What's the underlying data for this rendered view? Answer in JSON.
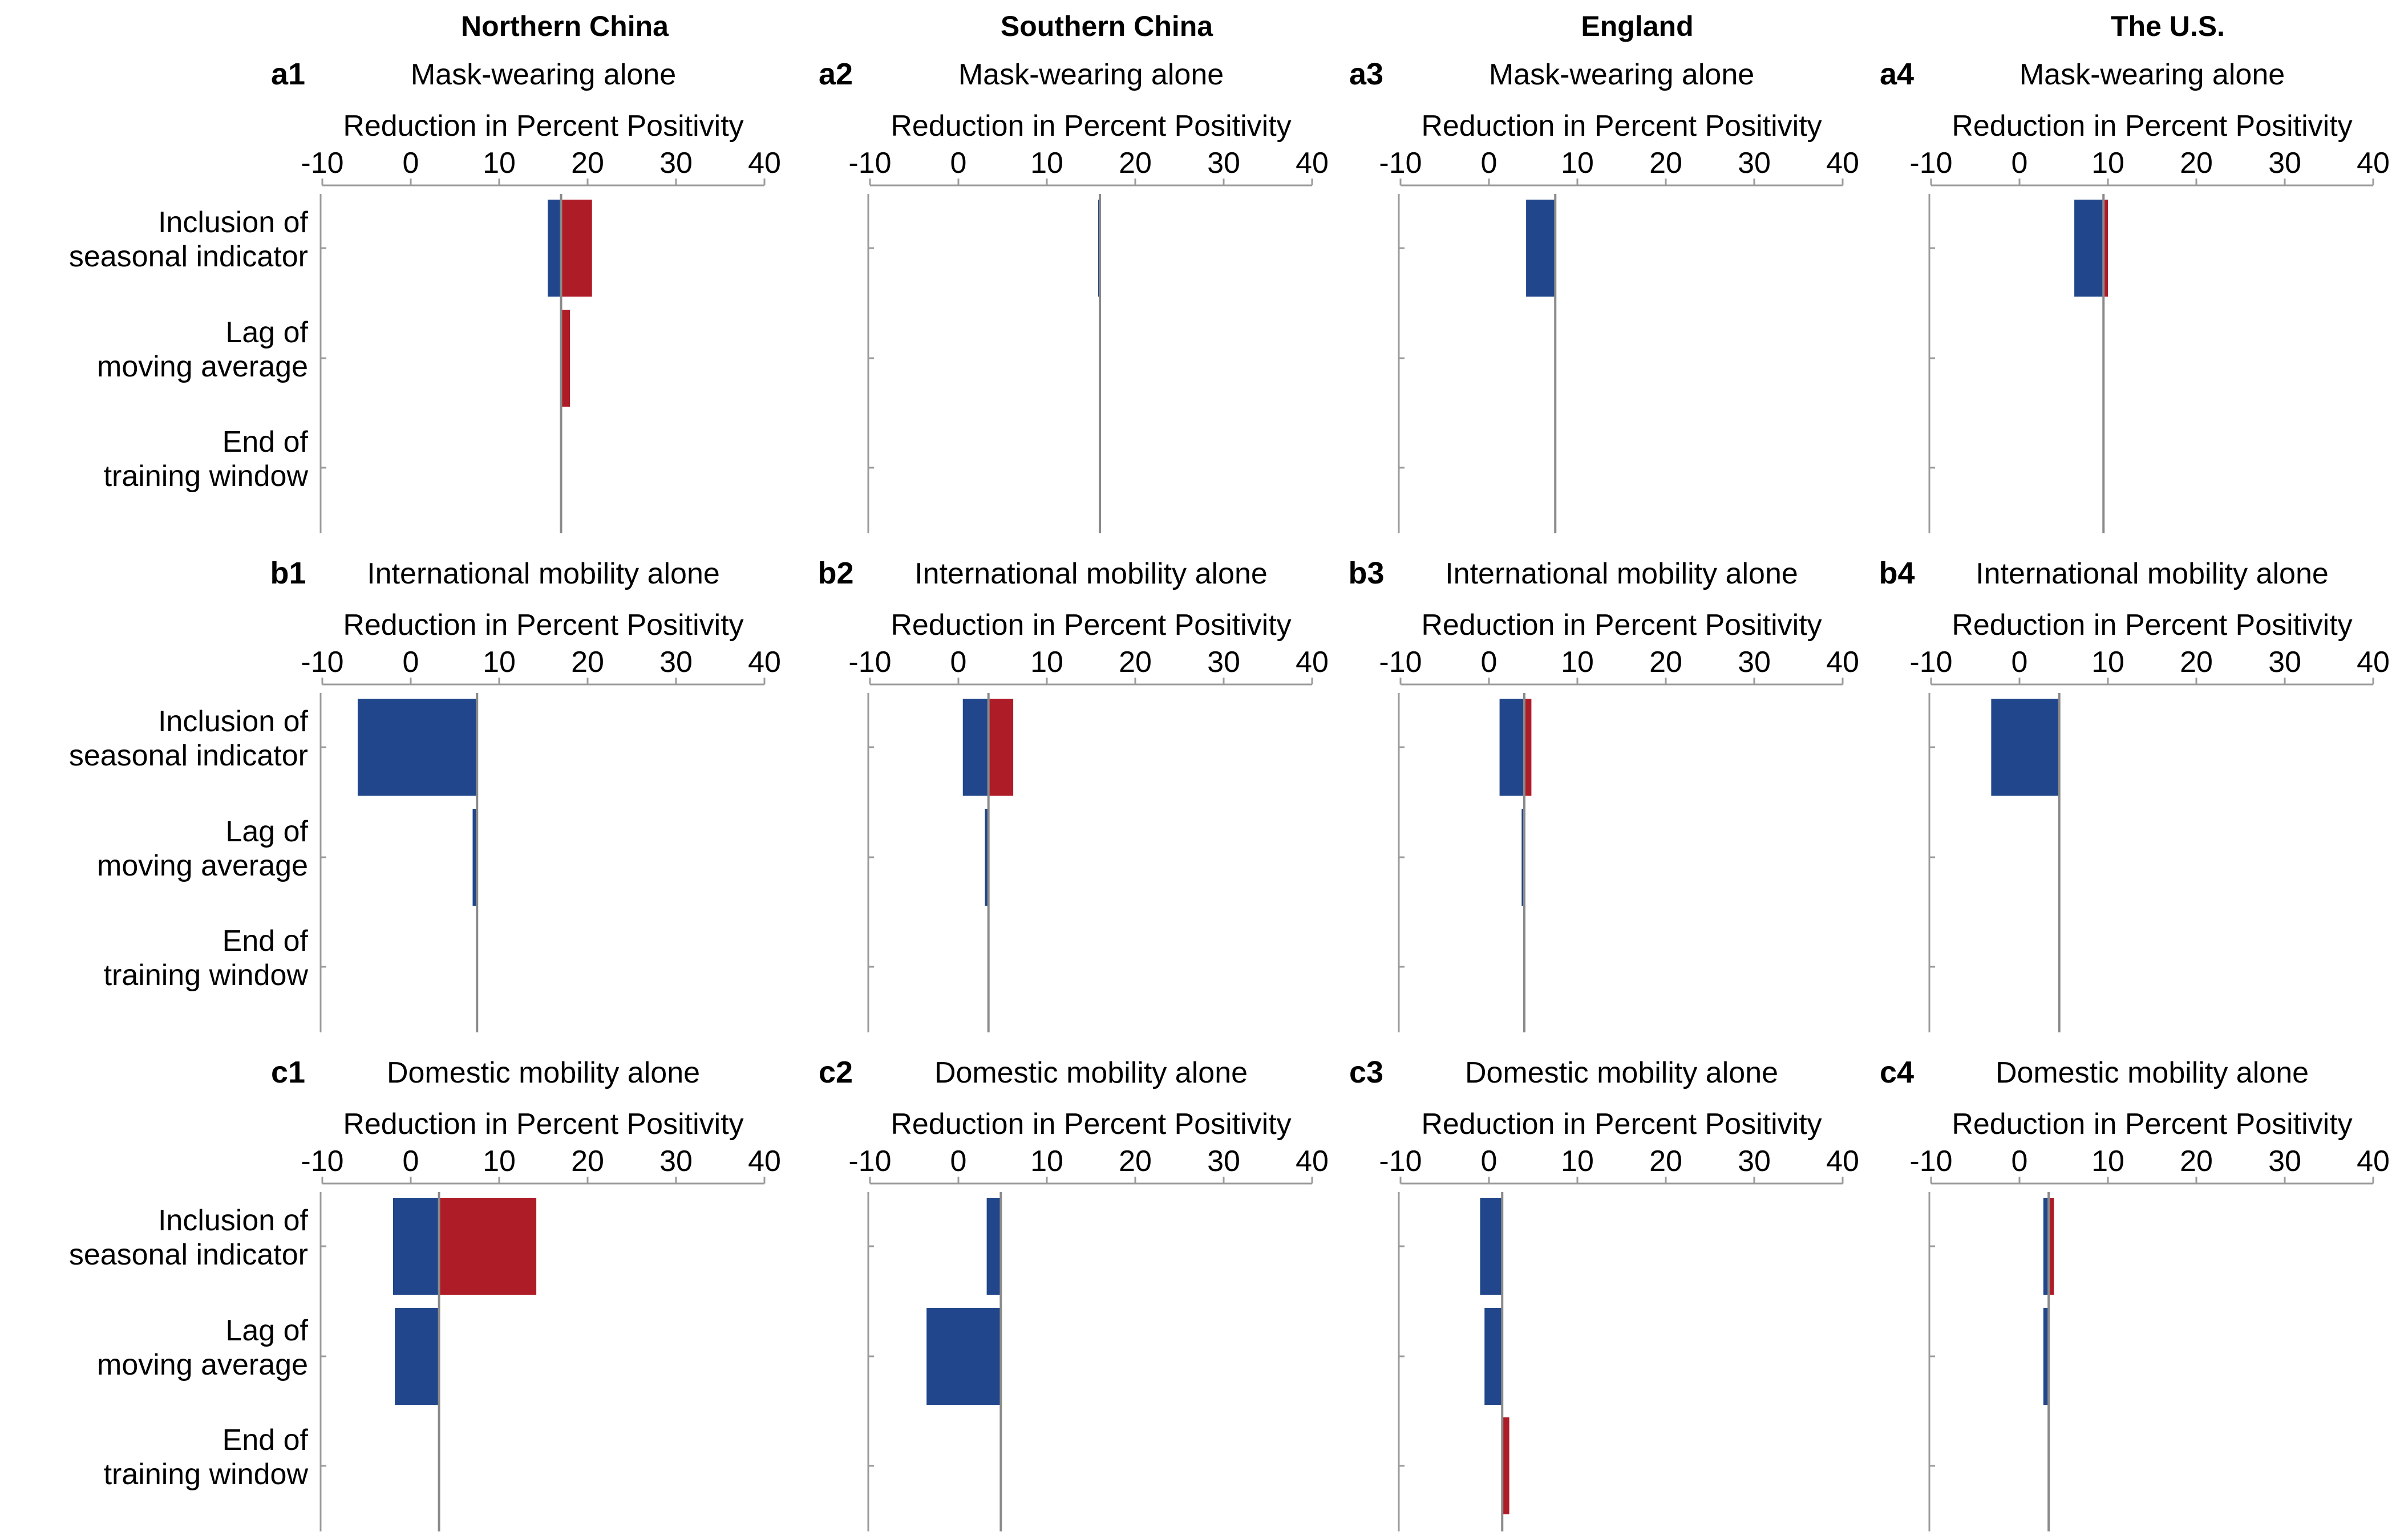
{
  "figure": {
    "columns": [
      "Northern China",
      "Southern China",
      "England",
      "The U.S."
    ],
    "rows": [
      "Mask-wearing alone",
      "International mobility alone",
      "Domestic mobility alone"
    ]
  },
  "colors": {
    "negative": "#21468b",
    "positive": "#ae1c28",
    "axis": "#9b9b9b",
    "reference_line": "#8a8a8a"
  },
  "chart_data": [
    {
      "type": "bar",
      "orientation": "horizontal",
      "id": "a1",
      "title": "Mask-wearing alone",
      "column": "Northern China",
      "xlabel": "Reduction in Percent Positivity",
      "xticks": [
        -10,
        0,
        10,
        20,
        30,
        40
      ],
      "xlim": [
        -10,
        40
      ],
      "baseline": 17,
      "categories": [
        "Inclusion of\nseasonal indicator",
        "Lag of\nmoving average",
        "End of\ntraining window"
      ],
      "values": [
        [
          15.5,
          20.5
        ],
        [
          17,
          18
        ],
        [
          17,
          17
        ]
      ]
    },
    {
      "type": "bar",
      "orientation": "horizontal",
      "id": "a2",
      "title": "Mask-wearing alone",
      "column": "Southern China",
      "xlabel": "Reduction in Percent Positivity",
      "xticks": [
        -10,
        0,
        10,
        20,
        30,
        40
      ],
      "xlim": [
        -10,
        40
      ],
      "baseline": 16,
      "categories": [
        "Inclusion of\nseasonal indicator",
        "Lag of\nmoving average",
        "End of\ntraining window"
      ],
      "values": [
        [
          15.8,
          16
        ],
        [
          16,
          16
        ],
        [
          16,
          16
        ]
      ]
    },
    {
      "type": "bar",
      "orientation": "horizontal",
      "id": "a3",
      "title": "Mask-wearing alone",
      "column": "England",
      "xlabel": "Reduction in Percent Positivity",
      "xticks": [
        -10,
        0,
        10,
        20,
        30,
        40
      ],
      "xlim": [
        -10,
        40
      ],
      "baseline": 7.5,
      "categories": [
        "Inclusion of\nseasonal indicator",
        "Lag of\nmoving average",
        "End of\ntraining window"
      ],
      "values": [
        [
          4.2,
          7.5
        ],
        [
          7.5,
          7.5
        ],
        [
          7.5,
          7.5
        ]
      ]
    },
    {
      "type": "bar",
      "orientation": "horizontal",
      "id": "a4",
      "title": "Mask-wearing alone",
      "column": "The U.S.",
      "xlabel": "Reduction in Percent Positivity",
      "xticks": [
        -10,
        0,
        10,
        20,
        30,
        40
      ],
      "xlim": [
        -10,
        40
      ],
      "baseline": 9.5,
      "categories": [
        "Inclusion of\nseasonal indicator",
        "Lag of\nmoving average",
        "End of\ntraining window"
      ],
      "values": [
        [
          6.2,
          10
        ],
        [
          9.4,
          9.5
        ],
        [
          9.5,
          9.5
        ]
      ]
    },
    {
      "type": "bar",
      "orientation": "horizontal",
      "id": "b1",
      "title": "International mobility alone",
      "column": "Northern China",
      "xlabel": "Reduction in Percent Positivity",
      "xticks": [
        -10,
        0,
        10,
        20,
        30,
        40
      ],
      "xlim": [
        -10,
        40
      ],
      "baseline": 7.5,
      "categories": [
        "Inclusion of\nseasonal indicator",
        "Lag of\nmoving average",
        "End of\ntraining window"
      ],
      "values": [
        [
          -6,
          7.5
        ],
        [
          7,
          7.5
        ],
        [
          7.5,
          7.5
        ]
      ]
    },
    {
      "type": "bar",
      "orientation": "horizontal",
      "id": "b2",
      "title": "International mobility alone",
      "column": "Southern China",
      "xlabel": "Reduction in Percent Positivity",
      "xticks": [
        -10,
        0,
        10,
        20,
        30,
        40
      ],
      "xlim": [
        -10,
        40
      ],
      "baseline": 3.4,
      "categories": [
        "Inclusion of\nseasonal indicator",
        "Lag of\nmoving average",
        "End of\ntraining window"
      ],
      "values": [
        [
          0.5,
          6.2
        ],
        [
          3,
          3.4
        ],
        [
          3.4,
          3.4
        ]
      ]
    },
    {
      "type": "bar",
      "orientation": "horizontal",
      "id": "b3",
      "title": "International mobility alone",
      "column": "England",
      "xlabel": "Reduction in Percent Positivity",
      "xticks": [
        -10,
        0,
        10,
        20,
        30,
        40
      ],
      "xlim": [
        -10,
        40
      ],
      "baseline": 4,
      "categories": [
        "Inclusion of\nseasonal indicator",
        "Lag of\nmoving average",
        "End of\ntraining window"
      ],
      "values": [
        [
          1.2,
          4.8
        ],
        [
          3.7,
          4
        ],
        [
          4,
          4
        ]
      ]
    },
    {
      "type": "bar",
      "orientation": "horizontal",
      "id": "b4",
      "title": "International mobility alone",
      "column": "The U.S.",
      "xlabel": "Reduction in Percent Positivity",
      "xticks": [
        -10,
        0,
        10,
        20,
        30,
        40
      ],
      "xlim": [
        -10,
        40
      ],
      "baseline": 4.5,
      "categories": [
        "Inclusion of\nseasonal indicator",
        "Lag of\nmoving average",
        "End of\ntraining window"
      ],
      "values": [
        [
          -3.2,
          4.5
        ],
        [
          4.4,
          4.5
        ],
        [
          4.5,
          4.5
        ]
      ]
    },
    {
      "type": "bar",
      "orientation": "horizontal",
      "id": "c1",
      "title": "Domestic mobility alone",
      "column": "Northern China",
      "xlabel": "Reduction in Percent Positivity",
      "xticks": [
        -10,
        0,
        10,
        20,
        30,
        40
      ],
      "xlim": [
        -10,
        40
      ],
      "baseline": 3.2,
      "categories": [
        "Inclusion of\nseasonal indicator",
        "Lag of\nmoving average",
        "End of\ntraining window"
      ],
      "values": [
        [
          -2,
          14.2
        ],
        [
          -1.8,
          3.2
        ],
        [
          3.2,
          3.2
        ]
      ]
    },
    {
      "type": "bar",
      "orientation": "horizontal",
      "id": "c2",
      "title": "Domestic mobility alone",
      "column": "Southern China",
      "xlabel": "Reduction in Percent Positivity",
      "xticks": [
        -10,
        0,
        10,
        20,
        30,
        40
      ],
      "xlim": [
        -10,
        40
      ],
      "baseline": 4.8,
      "categories": [
        "Inclusion of\nseasonal indicator",
        "Lag of\nmoving average",
        "End of\ntraining window"
      ],
      "values": [
        [
          3.2,
          4.8
        ],
        [
          -3.6,
          4.8
        ],
        [
          4.8,
          4.8
        ]
      ]
    },
    {
      "type": "bar",
      "orientation": "horizontal",
      "id": "c3",
      "title": "Domestic mobility alone",
      "column": "England",
      "xlabel": "Reduction in Percent Positivity",
      "xticks": [
        -10,
        0,
        10,
        20,
        30,
        40
      ],
      "xlim": [
        -10,
        40
      ],
      "baseline": 1.5,
      "categories": [
        "Inclusion of\nseasonal indicator",
        "Lag of\nmoving average",
        "End of\ntraining window"
      ],
      "values": [
        [
          -1,
          1.5
        ],
        [
          -0.5,
          1.5
        ],
        [
          1.5,
          2.3
        ]
      ]
    },
    {
      "type": "bar",
      "orientation": "horizontal",
      "id": "c4",
      "title": "Domestic mobility alone",
      "column": "The U.S.",
      "xlabel": "Reduction in Percent Positivity",
      "xticks": [
        -10,
        0,
        10,
        20,
        30,
        40
      ],
      "xlim": [
        -10,
        40
      ],
      "baseline": 3.3,
      "categories": [
        "Inclusion of\nseasonal indicator",
        "Lag of\nmoving average",
        "End of\ntraining window"
      ],
      "values": [
        [
          2.7,
          3.9
        ],
        [
          2.7,
          3.3
        ],
        [
          3.3,
          3.3
        ]
      ]
    }
  ]
}
